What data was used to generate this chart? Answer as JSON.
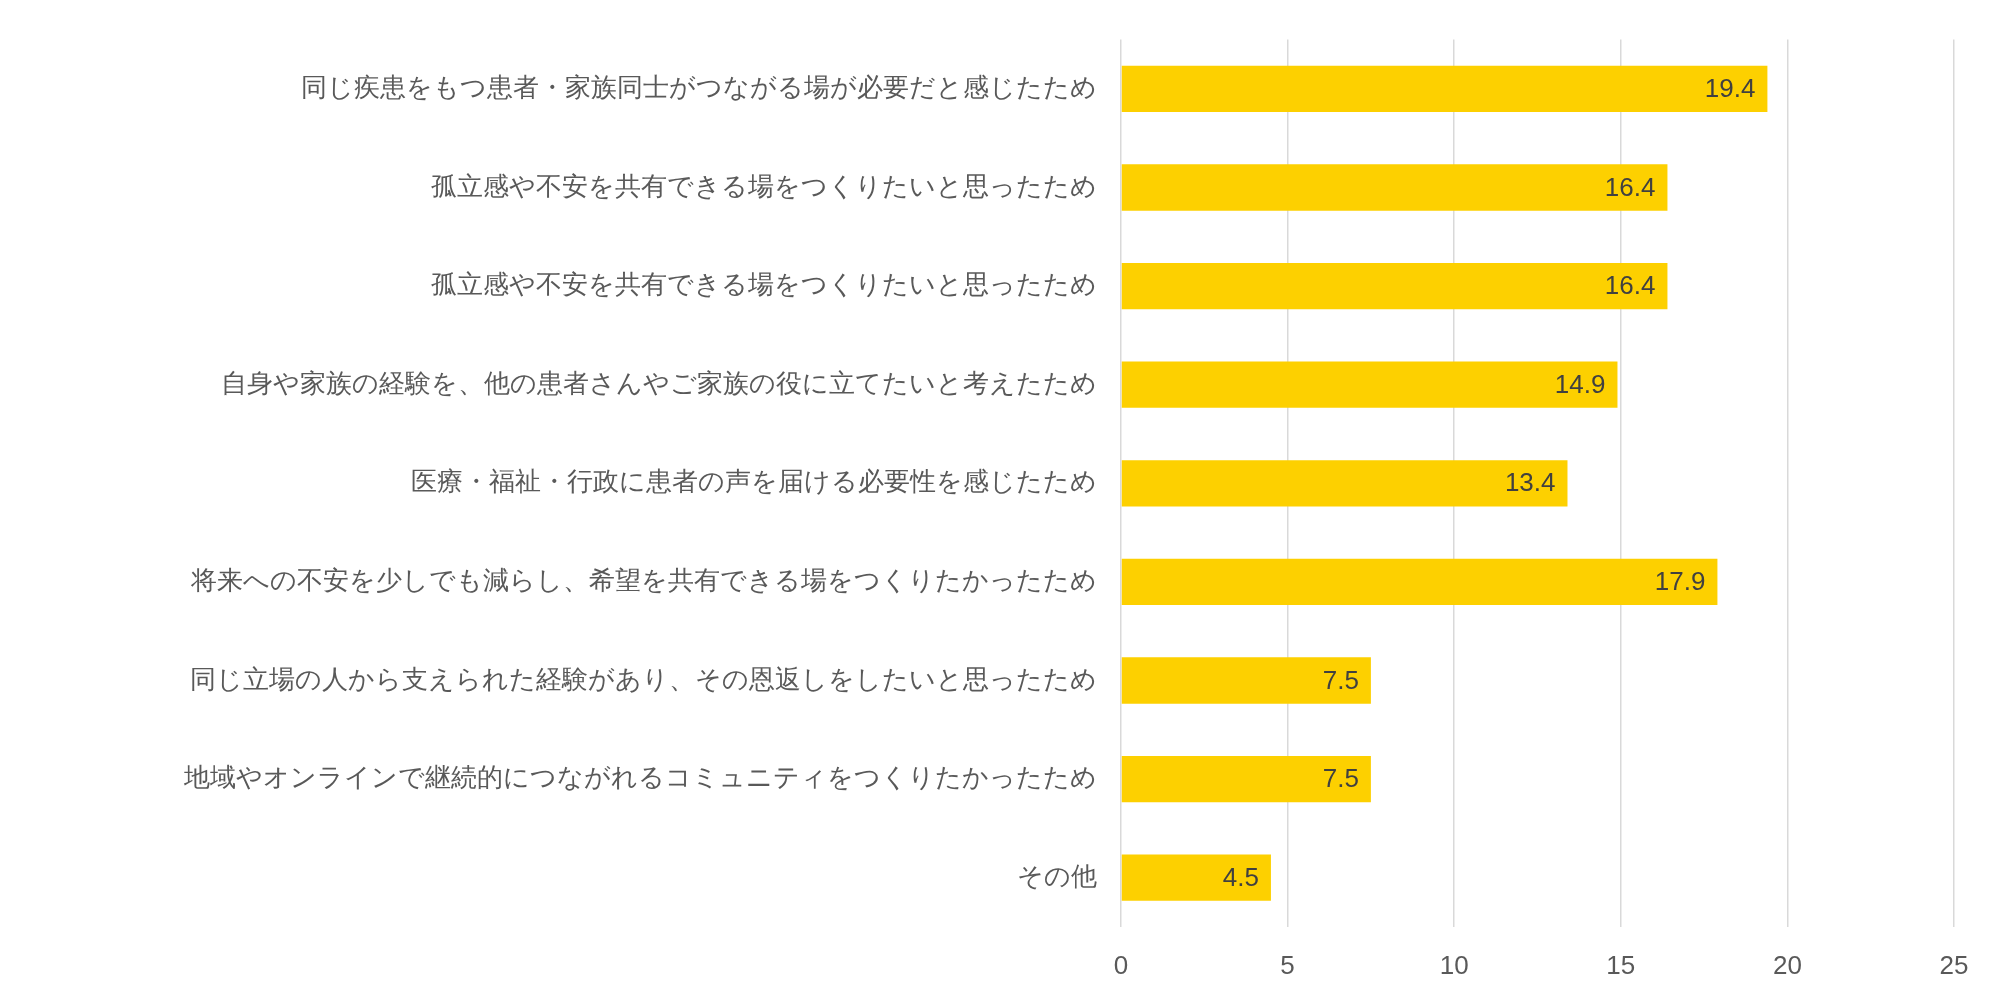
{
  "chart_data": {
    "type": "bar",
    "orientation": "horizontal",
    "categories": [
      "同じ疾患をもつ患者・家族同士がつながる場が必要だと感じたため",
      "孤立感や不安を共有できる場をつくりたいと思ったため",
      "孤立感や不安を共有できる場をつくりたいと思ったため",
      "自身や家族の経験を、他の患者さんやご家族の役に立てたいと考えたため",
      "医療・福祉・行政に患者の声を届ける必要性を感じたため",
      "将来への不安を少しでも減らし、希望を共有できる場をつくりたかったため",
      "同じ立場の人から支えられた経験があり、その恩返しをしたいと思ったため",
      "地域やオンラインで継続的につながれるコミュニティをつくりたかったため",
      "その他"
    ],
    "values": [
      19.4,
      16.4,
      16.4,
      14.9,
      13.4,
      17.9,
      7.5,
      7.5,
      4.5
    ],
    "color": "#fdd000",
    "xlim": [
      0,
      25
    ],
    "xticks": [
      0,
      5,
      10,
      15,
      20,
      25
    ],
    "grid": "x",
    "data_labels": true
  }
}
